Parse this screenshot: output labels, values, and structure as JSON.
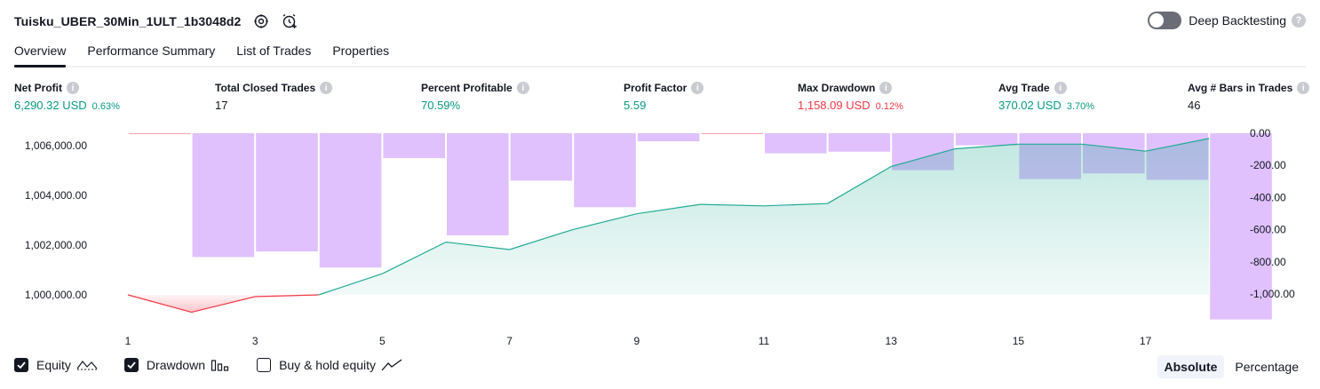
{
  "header": {
    "title": "Tuisku_UBER_30Min_1ULT_1b3048d2",
    "deep_backtesting_label": "Deep Backtesting",
    "deep_backtesting_enabled": false,
    "help_glyph": "?"
  },
  "tabs": [
    {
      "label": "Overview",
      "active": true
    },
    {
      "label": "Performance Summary",
      "active": false
    },
    {
      "label": "List of Trades",
      "active": false
    },
    {
      "label": "Properties",
      "active": false
    }
  ],
  "metrics": {
    "info_glyph": "i",
    "net_profit": {
      "label": "Net Profit",
      "value": "6,290.32 USD",
      "pct": "0.63%"
    },
    "total_closed_trades": {
      "label": "Total Closed Trades",
      "value": "17"
    },
    "percent_profitable": {
      "label": "Percent Profitable",
      "value": "70.59%"
    },
    "profit_factor": {
      "label": "Profit Factor",
      "value": "5.59"
    },
    "max_drawdown": {
      "label": "Max Drawdown",
      "value": "1,158.09 USD",
      "pct": "0.12%"
    },
    "avg_trade": {
      "label": "Avg Trade",
      "value": "370.02 USD",
      "pct": "3.70%"
    },
    "avg_bars": {
      "label": "Avg # Bars in Trades",
      "value": "46"
    }
  },
  "colors": {
    "positive": "#089981",
    "negative": "#f23645",
    "equity_line": "#22ab94",
    "drawdown_bar": "#e0c1fd"
  },
  "chart_data": {
    "type": "area",
    "x": [
      1,
      2,
      3,
      4,
      5,
      6,
      7,
      8,
      9,
      10,
      11,
      12,
      13,
      14,
      15,
      16,
      17,
      18
    ],
    "x_tick_labels": [
      "1",
      "3",
      "5",
      "7",
      "9",
      "11",
      "13",
      "15",
      "17"
    ],
    "x_ticks": [
      1,
      3,
      5,
      7,
      9,
      11,
      13,
      15,
      17
    ],
    "series": [
      {
        "name": "Equity",
        "axis": "left",
        "values": [
          1000000,
          999300,
          999930,
          1000000,
          1000850,
          1002120,
          1001820,
          1002630,
          1003260,
          1003640,
          1003580,
          1003670,
          1005160,
          1005870,
          1006060,
          1006060,
          1005780,
          1006290
        ]
      },
      {
        "name": "Drawdown",
        "axis": "right",
        "kind": "bar",
        "values": [
          0,
          -770,
          -735,
          -835,
          -155,
          -635,
          -295,
          -460,
          -50,
          0,
          -125,
          -115,
          -230,
          -75,
          -285,
          -250,
          -290,
          -1158.09
        ]
      }
    ],
    "left_axis": {
      "ylim": [
        999000,
        1006500
      ],
      "tick_labels": [
        "1,000,000.00",
        "1,002,000.00",
        "1,004,000.00",
        "1,006,000.00"
      ],
      "ticks": [
        1000000,
        1002000,
        1004000,
        1006000
      ]
    },
    "right_axis": {
      "ylim": [
        -1160,
        0
      ],
      "tick_labels": [
        "0.00",
        "-200.00",
        "-400.00",
        "-600.00",
        "-800.00",
        "-1,000.00"
      ],
      "ticks": [
        0,
        -200,
        -400,
        -600,
        -800,
        -1000
      ]
    },
    "grid": false
  },
  "legend": {
    "equity": {
      "label": "Equity",
      "checked": true
    },
    "drawdown": {
      "label": "Drawdown",
      "checked": true
    },
    "buy_hold": {
      "label": "Buy & hold equity",
      "checked": false
    }
  },
  "mode": {
    "absolute": "Absolute",
    "percentage": "Percentage",
    "selected": "absolute"
  }
}
